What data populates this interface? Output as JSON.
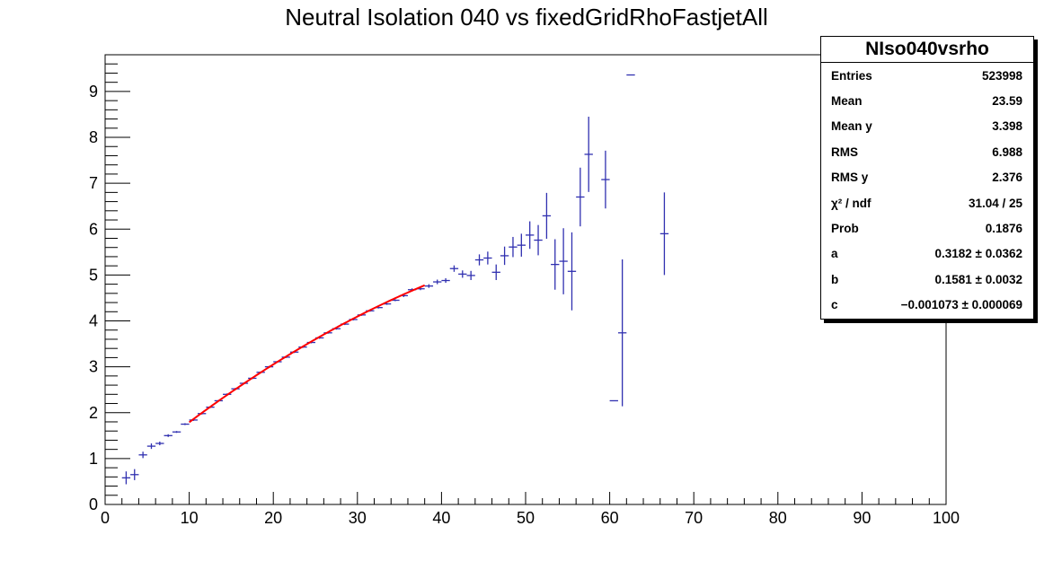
{
  "chart_data": {
    "type": "scatter",
    "title": "Neutral Isolation 040 vs fixedGridRhoFastjetAll",
    "xlim": [
      0,
      100
    ],
    "ylim": [
      0,
      9.8
    ],
    "xticks": [
      0,
      10,
      20,
      30,
      40,
      50,
      60,
      70,
      80,
      90,
      100
    ],
    "yticks": [
      0,
      1,
      2,
      3,
      4,
      5,
      6,
      7,
      8,
      9
    ],
    "bin_width": 1,
    "marker_color": "#3030b0",
    "fit_color": "#ff0000",
    "points": [
      {
        "x": 2.5,
        "y": 0.58,
        "err": 0.14
      },
      {
        "x": 3.5,
        "y": 0.65,
        "err": 0.12
      },
      {
        "x": 4.5,
        "y": 1.08,
        "err": 0.07
      },
      {
        "x": 5.5,
        "y": 1.27,
        "err": 0.06
      },
      {
        "x": 6.5,
        "y": 1.33,
        "err": 0.04
      },
      {
        "x": 7.5,
        "y": 1.5,
        "err": 0.03
      },
      {
        "x": 8.5,
        "y": 1.58,
        "err": 0.02
      },
      {
        "x": 9.5,
        "y": 1.75,
        "err": 0.02
      },
      {
        "x": 10.5,
        "y": 1.84,
        "err": 0.02
      },
      {
        "x": 11.5,
        "y": 1.98,
        "err": 0.02
      },
      {
        "x": 12.5,
        "y": 2.12,
        "err": 0.02
      },
      {
        "x": 13.5,
        "y": 2.26,
        "err": 0.02
      },
      {
        "x": 14.5,
        "y": 2.4,
        "err": 0.02
      },
      {
        "x": 15.5,
        "y": 2.52,
        "err": 0.02
      },
      {
        "x": 16.5,
        "y": 2.64,
        "err": 0.02
      },
      {
        "x": 17.5,
        "y": 2.75,
        "err": 0.02
      },
      {
        "x": 18.5,
        "y": 2.88,
        "err": 0.02
      },
      {
        "x": 19.5,
        "y": 3.0,
        "err": 0.02
      },
      {
        "x": 20.5,
        "y": 3.11,
        "err": 0.02
      },
      {
        "x": 21.5,
        "y": 3.21,
        "err": 0.02
      },
      {
        "x": 22.5,
        "y": 3.32,
        "err": 0.02
      },
      {
        "x": 23.5,
        "y": 3.43,
        "err": 0.02
      },
      {
        "x": 24.5,
        "y": 3.53,
        "err": 0.02
      },
      {
        "x": 25.5,
        "y": 3.63,
        "err": 0.02
      },
      {
        "x": 26.5,
        "y": 3.74,
        "err": 0.02
      },
      {
        "x": 27.5,
        "y": 3.83,
        "err": 0.02
      },
      {
        "x": 28.5,
        "y": 3.93,
        "err": 0.02
      },
      {
        "x": 29.5,
        "y": 4.03,
        "err": 0.02
      },
      {
        "x": 30.5,
        "y": 4.13,
        "err": 0.02
      },
      {
        "x": 31.5,
        "y": 4.22,
        "err": 0.02
      },
      {
        "x": 32.5,
        "y": 4.29,
        "err": 0.02
      },
      {
        "x": 33.5,
        "y": 4.37,
        "err": 0.02
      },
      {
        "x": 34.5,
        "y": 4.45,
        "err": 0.02
      },
      {
        "x": 35.5,
        "y": 4.55,
        "err": 0.03
      },
      {
        "x": 36.5,
        "y": 4.68,
        "err": 0.03
      },
      {
        "x": 37.5,
        "y": 4.7,
        "err": 0.03
      },
      {
        "x": 38.5,
        "y": 4.76,
        "err": 0.04
      },
      {
        "x": 39.5,
        "y": 4.85,
        "err": 0.05
      },
      {
        "x": 40.5,
        "y": 4.88,
        "err": 0.05
      },
      {
        "x": 41.5,
        "y": 5.14,
        "err": 0.07
      },
      {
        "x": 42.5,
        "y": 5.02,
        "err": 0.08
      },
      {
        "x": 43.5,
        "y": 4.99,
        "err": 0.1
      },
      {
        "x": 44.5,
        "y": 5.33,
        "err": 0.12
      },
      {
        "x": 45.5,
        "y": 5.37,
        "err": 0.14
      },
      {
        "x": 46.5,
        "y": 5.06,
        "err": 0.17
      },
      {
        "x": 47.5,
        "y": 5.42,
        "err": 0.2
      },
      {
        "x": 48.5,
        "y": 5.61,
        "err": 0.22
      },
      {
        "x": 49.5,
        "y": 5.65,
        "err": 0.25
      },
      {
        "x": 50.5,
        "y": 5.87,
        "err": 0.3
      },
      {
        "x": 51.5,
        "y": 5.76,
        "err": 0.33
      },
      {
        "x": 52.5,
        "y": 6.29,
        "err": 0.5
      },
      {
        "x": 53.5,
        "y": 5.23,
        "err": 0.55
      },
      {
        "x": 54.5,
        "y": 5.3,
        "err": 0.72
      },
      {
        "x": 55.5,
        "y": 5.08,
        "err": 0.85
      },
      {
        "x": 56.5,
        "y": 6.7,
        "err": 0.64
      },
      {
        "x": 57.5,
        "y": 7.63,
        "err": 0.82
      },
      {
        "x": 59.5,
        "y": 7.08,
        "err": 0.63
      },
      {
        "x": 60.5,
        "y": 2.26,
        "err": 0.0
      },
      {
        "x": 61.5,
        "y": 3.74,
        "err": 1.6
      },
      {
        "x": 62.5,
        "y": 9.36,
        "err": 0.0
      },
      {
        "x": 66.5,
        "y": 5.9,
        "err": 0.9
      }
    ],
    "fit": {
      "a": 0.3182,
      "b": 0.1581,
      "c": -0.001073,
      "xmin": 10,
      "xmax": 38
    }
  },
  "stats": {
    "title": "NIso040vsrho",
    "rows": [
      {
        "label": "Entries",
        "value": "523998"
      },
      {
        "label": "Mean",
        "value": "23.59"
      },
      {
        "label": "Mean y",
        "value": "3.398"
      },
      {
        "label": "RMS",
        "value": "6.988"
      },
      {
        "label": "RMS y",
        "value": "2.376"
      },
      {
        "label": "χ² / ndf",
        "value": "31.04 / 25"
      },
      {
        "label": "Prob",
        "value": "0.1876"
      },
      {
        "label": "a",
        "value": "0.3182 ± 0.0362"
      },
      {
        "label": "b",
        "value": "0.1581 ± 0.0032"
      },
      {
        "label": "c",
        "value": "−0.001073 ± 0.000069"
      }
    ]
  }
}
